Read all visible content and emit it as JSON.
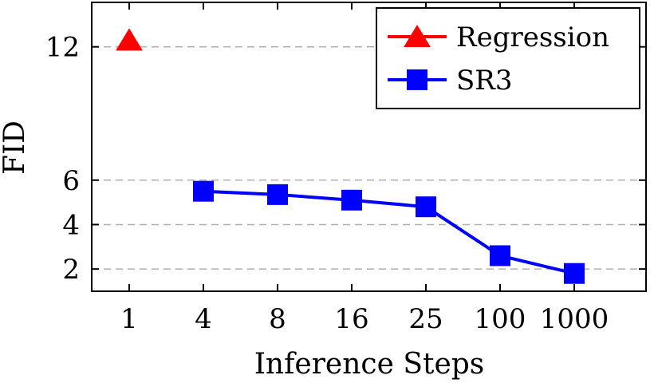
{
  "chart_data": {
    "type": "line",
    "xlabel": "Inference Steps",
    "ylabel": "FID",
    "categories": [
      "1",
      "4",
      "8",
      "16",
      "25",
      "100",
      "1000"
    ],
    "yticks": [
      2,
      4,
      6,
      12
    ],
    "ylim": [
      1.0,
      14.0
    ],
    "grid": "horizontal-dashed",
    "legend_position": "top-right",
    "series": [
      {
        "name": "Regression",
        "color": "#ff0000",
        "marker": "triangle",
        "x": [
          "1"
        ],
        "values": [
          12.3
        ]
      },
      {
        "name": "SR3",
        "color": "#0000ff",
        "marker": "square",
        "x": [
          "4",
          "8",
          "16",
          "25",
          "100",
          "1000"
        ],
        "values": [
          5.5,
          5.35,
          5.1,
          4.8,
          2.6,
          1.8
        ]
      }
    ]
  }
}
